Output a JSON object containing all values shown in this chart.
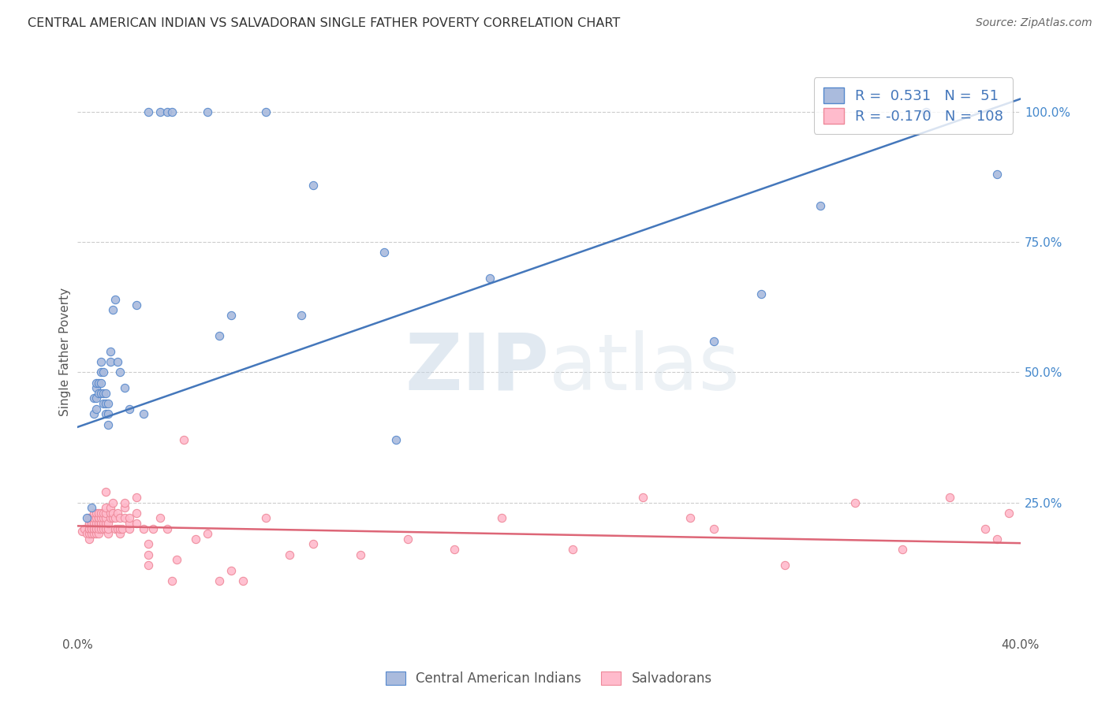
{
  "title": "CENTRAL AMERICAN INDIAN VS SALVADORAN SINGLE FATHER POVERTY CORRELATION CHART",
  "source": "Source: ZipAtlas.com",
  "ylabel": "Single Father Poverty",
  "right_yticks": [
    "100.0%",
    "75.0%",
    "50.0%",
    "25.0%"
  ],
  "right_ytick_vals": [
    1.0,
    0.75,
    0.5,
    0.25
  ],
  "blue_R": 0.531,
  "blue_N": 51,
  "pink_R": -0.17,
  "pink_N": 108,
  "blue_fill_color": "#AABBDD",
  "blue_edge_color": "#5588CC",
  "pink_fill_color": "#FFBBCC",
  "pink_edge_color": "#EE8899",
  "blue_line_color": "#4477BB",
  "pink_line_color": "#DD6677",
  "watermark_zip": "ZIP",
  "watermark_atlas": "atlas",
  "legend_label_blue": "Central American Indians",
  "legend_label_pink": "Salvadorans",
  "xlim": [
    0.0,
    0.4
  ],
  "ylim": [
    0.0,
    1.08
  ],
  "blue_line_x0": 0.0,
  "blue_line_y0": 0.395,
  "blue_line_x1": 0.4,
  "blue_line_y1": 1.025,
  "pink_line_x0": 0.0,
  "pink_line_y0": 0.205,
  "pink_line_x1": 0.4,
  "pink_line_y1": 0.172,
  "blue_scatter_x": [
    0.004,
    0.006,
    0.007,
    0.007,
    0.008,
    0.008,
    0.008,
    0.008,
    0.009,
    0.009,
    0.01,
    0.01,
    0.01,
    0.01,
    0.011,
    0.011,
    0.011,
    0.012,
    0.012,
    0.012,
    0.013,
    0.013,
    0.013,
    0.014,
    0.014,
    0.015,
    0.016,
    0.017,
    0.018,
    0.02,
    0.022,
    0.025,
    0.028,
    0.03,
    0.035,
    0.038,
    0.04,
    0.055,
    0.06,
    0.065,
    0.08,
    0.095,
    0.1,
    0.13,
    0.175,
    0.27,
    0.315,
    0.39,
    0.135,
    0.29,
    0.36
  ],
  "blue_scatter_y": [
    0.22,
    0.24,
    0.42,
    0.45,
    0.43,
    0.45,
    0.47,
    0.48,
    0.46,
    0.48,
    0.46,
    0.48,
    0.5,
    0.52,
    0.44,
    0.46,
    0.5,
    0.42,
    0.44,
    0.46,
    0.4,
    0.42,
    0.44,
    0.52,
    0.54,
    0.62,
    0.64,
    0.52,
    0.5,
    0.47,
    0.43,
    0.63,
    0.42,
    1.0,
    1.0,
    1.0,
    1.0,
    1.0,
    0.57,
    0.61,
    1.0,
    0.61,
    0.86,
    0.73,
    0.68,
    0.56,
    0.82,
    0.88,
    0.37,
    0.65,
    1.0
  ],
  "pink_scatter_x": [
    0.002,
    0.003,
    0.004,
    0.005,
    0.005,
    0.005,
    0.005,
    0.005,
    0.005,
    0.005,
    0.005,
    0.006,
    0.006,
    0.006,
    0.006,
    0.006,
    0.007,
    0.007,
    0.007,
    0.007,
    0.007,
    0.007,
    0.008,
    0.008,
    0.008,
    0.008,
    0.008,
    0.008,
    0.009,
    0.009,
    0.009,
    0.009,
    0.009,
    0.009,
    0.01,
    0.01,
    0.01,
    0.01,
    0.01,
    0.011,
    0.011,
    0.011,
    0.011,
    0.012,
    0.012,
    0.012,
    0.012,
    0.012,
    0.012,
    0.013,
    0.013,
    0.013,
    0.014,
    0.014,
    0.014,
    0.015,
    0.015,
    0.015,
    0.016,
    0.016,
    0.017,
    0.017,
    0.018,
    0.018,
    0.018,
    0.019,
    0.02,
    0.02,
    0.02,
    0.022,
    0.022,
    0.022,
    0.025,
    0.025,
    0.025,
    0.028,
    0.03,
    0.03,
    0.03,
    0.032,
    0.035,
    0.038,
    0.04,
    0.042,
    0.045,
    0.05,
    0.055,
    0.06,
    0.065,
    0.07,
    0.08,
    0.09,
    0.1,
    0.12,
    0.14,
    0.16,
    0.18,
    0.21,
    0.24,
    0.27,
    0.3,
    0.33,
    0.37,
    0.385,
    0.39,
    0.395,
    0.26,
    0.35
  ],
  "pink_scatter_y": [
    0.195,
    0.2,
    0.19,
    0.18,
    0.19,
    0.2,
    0.2,
    0.21,
    0.21,
    0.22,
    0.22,
    0.19,
    0.2,
    0.2,
    0.21,
    0.22,
    0.19,
    0.2,
    0.2,
    0.21,
    0.22,
    0.23,
    0.19,
    0.2,
    0.2,
    0.21,
    0.22,
    0.23,
    0.19,
    0.2,
    0.21,
    0.22,
    0.22,
    0.23,
    0.2,
    0.21,
    0.21,
    0.22,
    0.23,
    0.2,
    0.21,
    0.22,
    0.23,
    0.2,
    0.21,
    0.22,
    0.23,
    0.24,
    0.27,
    0.19,
    0.2,
    0.21,
    0.22,
    0.23,
    0.24,
    0.22,
    0.23,
    0.25,
    0.2,
    0.22,
    0.2,
    0.23,
    0.19,
    0.2,
    0.22,
    0.2,
    0.22,
    0.24,
    0.25,
    0.2,
    0.21,
    0.22,
    0.21,
    0.23,
    0.26,
    0.2,
    0.13,
    0.15,
    0.17,
    0.2,
    0.22,
    0.2,
    0.1,
    0.14,
    0.37,
    0.18,
    0.19,
    0.1,
    0.12,
    0.1,
    0.22,
    0.15,
    0.17,
    0.15,
    0.18,
    0.16,
    0.22,
    0.16,
    0.26,
    0.2,
    0.13,
    0.25,
    0.26,
    0.2,
    0.18,
    0.23,
    0.22,
    0.16
  ]
}
